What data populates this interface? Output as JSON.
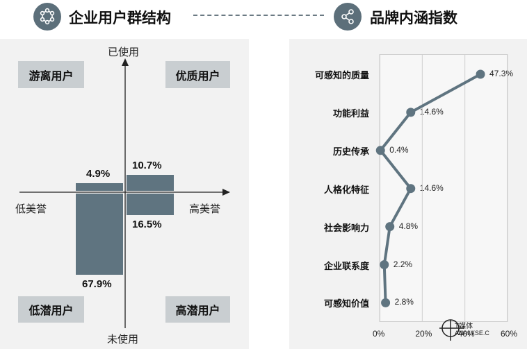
{
  "left_section": {
    "title": "企业用户群结构",
    "icon": "molecule-icon",
    "axis_top": "已使用",
    "axis_bottom": "未使用",
    "axis_left": "低美誉",
    "axis_right": "高美誉",
    "quadrants": {
      "top_left": "游离用户",
      "top_right": "优质用户",
      "bottom_left": "低潜用户",
      "bottom_right": "高潜用户"
    }
  },
  "right_section": {
    "title": "品牌内涵指数",
    "icon": "share-icon"
  },
  "watermark": {
    "name": "T媒体",
    "sub": "ANALYSE.C"
  },
  "chart_data": [
    {
      "type": "bar",
      "bars": [
        {
          "label": "4.9%",
          "value": 4.9,
          "quadrant": "top_left"
        },
        {
          "label": "10.7%",
          "value": 10.7,
          "quadrant": "top_right"
        },
        {
          "label": "67.9%",
          "value": 67.9,
          "quadrant": "bottom_left"
        },
        {
          "label": "16.5%",
          "value": 16.5,
          "quadrant": "bottom_right"
        }
      ]
    },
    {
      "type": "line",
      "categories": [
        "可感知的质量",
        "功能利益",
        "历史传承",
        "人格化特征",
        "社会影响力",
        "企业联系度",
        "可感知价值"
      ],
      "values": [
        47.3,
        14.6,
        0.4,
        14.6,
        4.8,
        2.2,
        2.8
      ],
      "value_labels": [
        "47.3%",
        "14.6%",
        "0.4%",
        "14.6%",
        "4.8%",
        "2.2%",
        "2.8%"
      ],
      "xlim": [
        0,
        60
      ],
      "xticks": [
        "0%",
        "20%",
        "40%",
        "60%"
      ],
      "grid": true,
      "color": "#5f7480"
    }
  ]
}
